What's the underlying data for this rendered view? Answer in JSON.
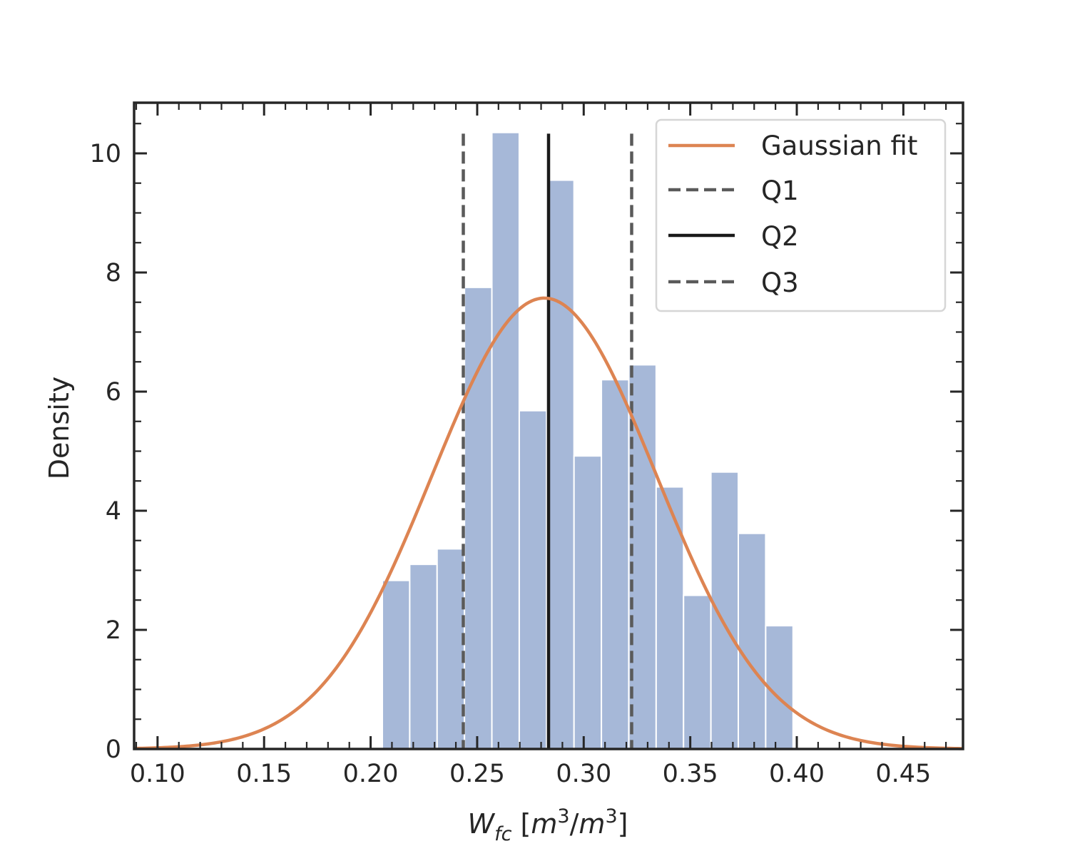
{
  "chart_data": {
    "type": "bar",
    "title": "",
    "xlabel": {
      "main": "W",
      "sub": "fc",
      "unit_open": " [",
      "unit_m1": "m",
      "unit_exp1": "3",
      "unit_slash": "/",
      "unit_m2": "m",
      "unit_exp2": "3",
      "unit_close": "]"
    },
    "ylabel": "Density",
    "xlim": [
      0.089,
      0.478
    ],
    "ylim": [
      0,
      10.85
    ],
    "xticks": [
      0.1,
      0.15,
      0.2,
      0.25,
      0.3,
      0.35,
      0.4,
      0.45
    ],
    "xtick_labels": [
      "0.10",
      "0.15",
      "0.20",
      "0.25",
      "0.30",
      "0.35",
      "0.40",
      "0.45"
    ],
    "yticks": [
      0,
      2,
      4,
      6,
      8,
      10
    ],
    "ytick_labels": [
      "0",
      "2",
      "4",
      "6",
      "8",
      "10"
    ],
    "grid": false,
    "histogram": {
      "bin_start": 0.2055,
      "bin_width": 0.01285,
      "values": [
        2.83,
        3.1,
        3.36,
        7.75,
        10.35,
        5.68,
        9.55,
        4.92,
        6.2,
        6.45,
        4.4,
        2.58,
        4.65,
        3.62,
        2.07
      ],
      "color": "#a6b8d8"
    },
    "gaussian_fit": {
      "name": "Gaussian fit",
      "mean": 0.2815,
      "std": 0.0527,
      "peak": 7.57,
      "color": "#dd8452"
    },
    "quartiles": [
      {
        "name": "Q1",
        "x": 0.2435,
        "style": "dashed",
        "color": "#5a5a5a"
      },
      {
        "name": "Q2",
        "x": 0.2835,
        "style": "solid",
        "color": "#1a1a1a"
      },
      {
        "name": "Q3",
        "x": 0.3225,
        "style": "dashed",
        "color": "#5a5a5a"
      }
    ],
    "legend": {
      "position": "upper right",
      "entries": [
        "Gaussian fit",
        "Q1",
        "Q2",
        "Q3"
      ]
    }
  }
}
